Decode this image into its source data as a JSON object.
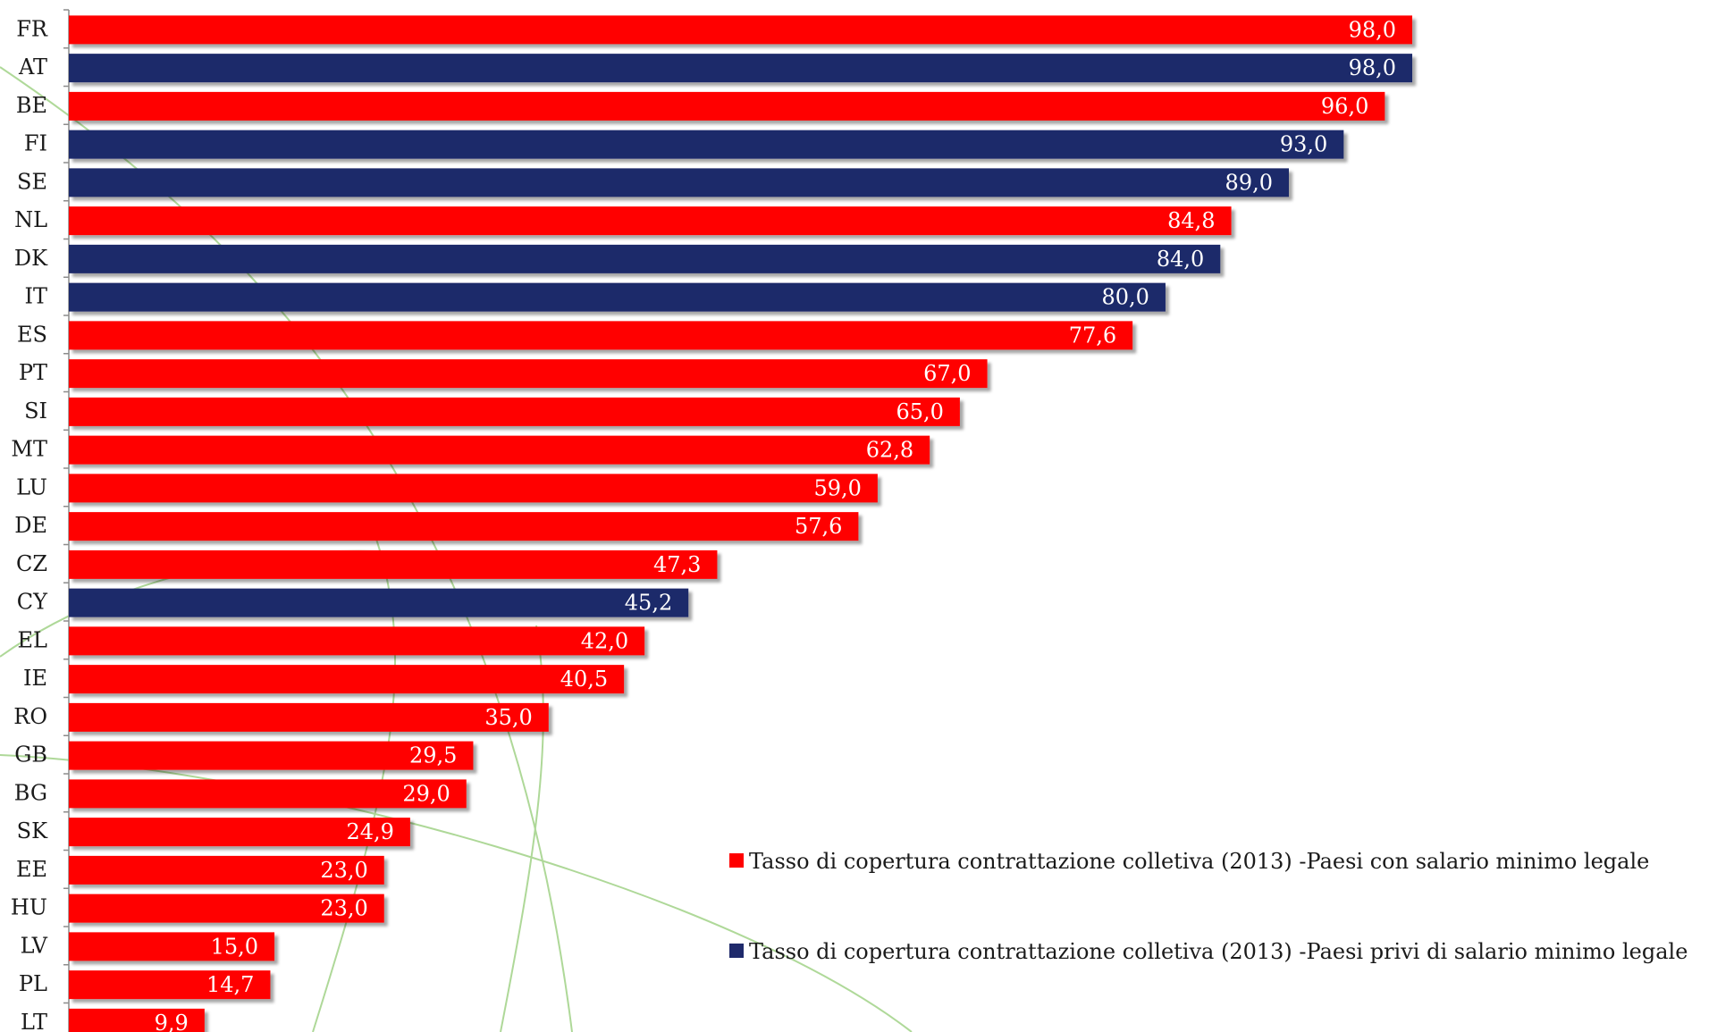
{
  "chart_data": {
    "type": "bar",
    "orientation": "horizontal",
    "categories": [
      "FR",
      "AT",
      "BE",
      "FI",
      "SE",
      "NL",
      "DK",
      "IT",
      "ES",
      "PT",
      "SI",
      "MT",
      "LU",
      "DE",
      "CZ",
      "CY",
      "EL",
      "IE",
      "RO",
      "GB",
      "BG",
      "SK",
      "EE",
      "HU",
      "LV",
      "PL",
      "LT"
    ],
    "values": [
      98.0,
      98.0,
      96.0,
      93.0,
      89.0,
      84.8,
      84.0,
      80.0,
      77.6,
      67.0,
      65.0,
      62.8,
      59.0,
      57.6,
      47.3,
      45.2,
      42.0,
      40.5,
      35.0,
      29.5,
      29.0,
      24.9,
      23.0,
      23.0,
      15.0,
      14.7,
      9.9
    ],
    "value_labels": [
      "98,0",
      "98,0",
      "96,0",
      "93,0",
      "89,0",
      "84,8",
      "84,0",
      "80,0",
      "77,6",
      "67,0",
      "65,0",
      "62,8",
      "59,0",
      "57,6",
      "47,3",
      "45,2",
      "42,0",
      "40,5",
      "35,0",
      "29,5",
      "29,0",
      "24,9",
      "23,0",
      "23,0",
      "15,0",
      "14,7",
      "9,9"
    ],
    "group": [
      0,
      1,
      0,
      1,
      1,
      0,
      1,
      1,
      0,
      0,
      0,
      0,
      0,
      0,
      0,
      1,
      0,
      0,
      0,
      0,
      0,
      0,
      0,
      0,
      0,
      0,
      0
    ],
    "series": [
      {
        "name": "Tasso di copertura contrattazione colletiva (2013) -Paesi con salario minimo legale",
        "color": "#ff0000"
      },
      {
        "name": "Tasso di copertura contrattazione colletiva (2013) -Paesi privi di salario minimo legale",
        "color": "#1f2a6b"
      }
    ],
    "xlim": [
      0,
      100
    ],
    "grid": false,
    "legend_position": "right"
  },
  "colors": {
    "background_curves": "#9bcf7f"
  }
}
